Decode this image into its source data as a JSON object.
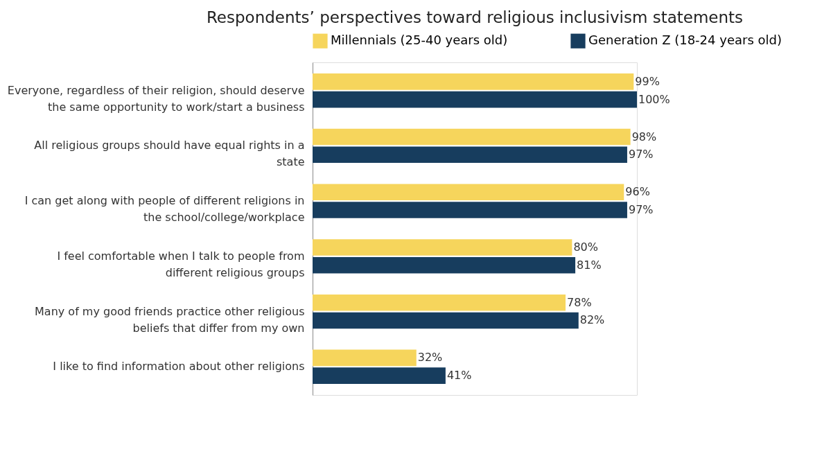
{
  "chart_data": {
    "type": "bar",
    "orientation": "horizontal",
    "title": "Respondents’ perspectives toward religious inclusivism statements",
    "categories": [
      "Everyone, regardless of their religion, should deserve the same opportunity to work/start a business",
      "All religious groups should have equal rights in a state",
      "I can get along with people of different religions in the school/college/workplace",
      "I feel comfortable when I talk to people from different religious groups",
      "Many of my good friends practice other religious beliefs that differ from my own",
      "I like to find information about other religions"
    ],
    "series": [
      {
        "name": "Millennials (25-40 years old)",
        "color": "#f6d55c",
        "values": [
          99,
          98,
          96,
          80,
          78,
          32
        ],
        "value_labels": [
          "99%",
          "98%",
          "96%",
          "80%",
          "78%",
          "32%"
        ]
      },
      {
        "name": "Generation Z (18-24 years old)",
        "color": "#173d5e",
        "values": [
          100,
          97,
          97,
          81,
          82,
          41
        ],
        "value_labels": [
          "100%",
          "97%",
          "97%",
          "81%",
          "82%",
          "41%"
        ]
      }
    ],
    "legend": "top",
    "grid": false
  }
}
